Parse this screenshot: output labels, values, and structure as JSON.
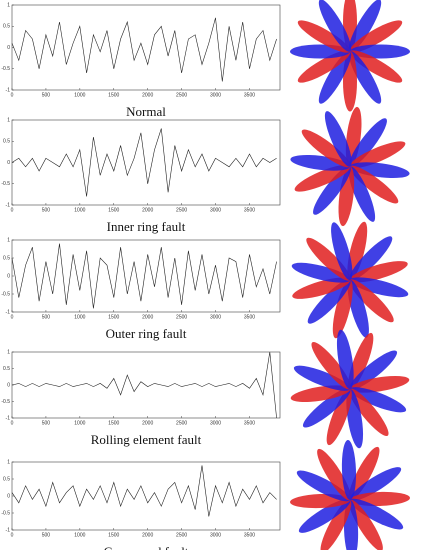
{
  "chart_data": [
    {
      "type": "line",
      "title": "Normal",
      "xlim": [
        0,
        3950
      ],
      "ylim": [
        -1,
        1
      ],
      "xticks": [
        0,
        500,
        1000,
        1500,
        2000,
        2500,
        3000,
        3500
      ],
      "yticks": [
        1,
        0.5,
        0,
        -0.5,
        -1
      ],
      "color": "#222222",
      "x": [
        0,
        100,
        200,
        300,
        400,
        500,
        600,
        700,
        800,
        900,
        1000,
        1100,
        1200,
        1300,
        1400,
        1500,
        1600,
        1700,
        1800,
        1900,
        2000,
        2100,
        2200,
        2300,
        2400,
        2500,
        2600,
        2700,
        2800,
        2900,
        3000,
        3100,
        3200,
        3300,
        3400,
        3500,
        3600,
        3700,
        3800,
        3900
      ],
      "values": [
        0.1,
        -0.3,
        0.4,
        0.2,
        -0.5,
        0.3,
        -0.2,
        0.6,
        -0.4,
        0.1,
        0.5,
        -0.6,
        0.3,
        -0.1,
        0.4,
        -0.5,
        0.2,
        0.6,
        -0.3,
        0.1,
        -0.4,
        0.3,
        0.5,
        -0.2,
        0.4,
        -0.6,
        0.2,
        0.3,
        -0.4,
        0.1,
        0.7,
        -0.8,
        0.5,
        -0.3,
        0.6,
        -0.5,
        0.2,
        0.4,
        -0.3,
        0.2
      ]
    },
    {
      "type": "line",
      "title": "Inner ring fault",
      "xlim": [
        0,
        3950
      ],
      "ylim": [
        -1,
        1
      ],
      "xticks": [
        0,
        500,
        1000,
        1500,
        2000,
        2500,
        3000,
        3500
      ],
      "yticks": [
        1,
        0.5,
        0,
        -0.5,
        -1
      ],
      "color": "#222222",
      "x": [
        0,
        100,
        200,
        300,
        400,
        500,
        600,
        700,
        800,
        900,
        1000,
        1100,
        1200,
        1300,
        1400,
        1500,
        1600,
        1700,
        1800,
        1900,
        2000,
        2100,
        2200,
        2300,
        2400,
        2500,
        2600,
        2700,
        2800,
        2900,
        3000,
        3100,
        3200,
        3300,
        3400,
        3500,
        3600,
        3700,
        3800,
        3900
      ],
      "values": [
        0.0,
        0.1,
        -0.1,
        0.1,
        -0.2,
        0.1,
        0.0,
        -0.1,
        0.2,
        -0.1,
        0.3,
        -0.8,
        0.6,
        -0.3,
        0.2,
        -0.2,
        0.4,
        -0.3,
        0.1,
        0.7,
        -0.5,
        0.3,
        0.8,
        -0.7,
        0.4,
        -0.2,
        0.3,
        -0.1,
        0.2,
        -0.2,
        0.1,
        0.0,
        -0.1,
        0.1,
        -0.1,
        0.2,
        -0.1,
        0.1,
        0.0,
        0.1
      ]
    },
    {
      "type": "line",
      "title": "Outer ring fault",
      "xlim": [
        0,
        3950
      ],
      "ylim": [
        -1,
        1
      ],
      "xticks": [
        0,
        500,
        1000,
        1500,
        2000,
        2500,
        3000,
        3500
      ],
      "yticks": [
        1,
        0.5,
        0,
        -0.5,
        -1
      ],
      "color": "#222222",
      "x": [
        0,
        100,
        200,
        300,
        400,
        500,
        600,
        700,
        800,
        900,
        1000,
        1100,
        1200,
        1300,
        1400,
        1500,
        1600,
        1700,
        1800,
        1900,
        2000,
        2100,
        2200,
        2300,
        2400,
        2500,
        2600,
        2700,
        2800,
        2900,
        3000,
        3100,
        3200,
        3300,
        3400,
        3500,
        3600,
        3700,
        3800,
        3900
      ],
      "values": [
        0.5,
        -0.6,
        0.3,
        0.8,
        -0.7,
        0.4,
        -0.5,
        0.9,
        -0.8,
        0.6,
        -0.4,
        0.7,
        -0.9,
        0.5,
        0.3,
        -0.6,
        0.8,
        -0.5,
        0.4,
        -0.7,
        0.6,
        -0.3,
        0.8,
        -0.6,
        0.5,
        -0.8,
        0.7,
        -0.4,
        0.6,
        -0.5,
        0.3,
        -0.7,
        0.5,
        0.4,
        -0.6,
        0.6,
        -0.3,
        0.2,
        -0.5,
        0.4
      ]
    },
    {
      "type": "line",
      "title": "Rolling element fault",
      "xlim": [
        0,
        3950
      ],
      "ylim": [
        -1,
        1
      ],
      "xticks": [
        0,
        500,
        1000,
        1500,
        2000,
        2500,
        3000,
        3500
      ],
      "yticks": [
        1,
        0.5,
        0,
        -0.5,
        -1
      ],
      "color": "#222222",
      "x": [
        0,
        100,
        200,
        300,
        400,
        500,
        600,
        700,
        800,
        900,
        1000,
        1100,
        1200,
        1300,
        1400,
        1500,
        1600,
        1700,
        1800,
        1900,
        2000,
        2100,
        2200,
        2300,
        2400,
        2500,
        2600,
        2700,
        2800,
        2900,
        3000,
        3100,
        3200,
        3300,
        3400,
        3500,
        3600,
        3700,
        3800,
        3900
      ],
      "values": [
        0.0,
        0.05,
        -0.05,
        0.05,
        -0.05,
        0.05,
        0.0,
        -0.05,
        0.05,
        -0.05,
        0.0,
        0.05,
        -0.05,
        0.05,
        -0.1,
        0.2,
        -0.3,
        0.3,
        -0.2,
        0.1,
        -0.05,
        0.05,
        0.0,
        -0.05,
        0.05,
        -0.05,
        0.0,
        0.05,
        -0.05,
        0.05,
        -0.05,
        0.0,
        0.05,
        -0.05,
        0.05,
        -0.1,
        0.2,
        -0.3,
        1.0,
        -1.0
      ]
    },
    {
      "type": "line",
      "title": "Compound fault",
      "xlim": [
        0,
        3950
      ],
      "ylim": [
        -1,
        1
      ],
      "xticks": [
        0,
        500,
        1000,
        1500,
        2000,
        2500,
        3000,
        3500
      ],
      "yticks": [
        1,
        0.5,
        0,
        -0.5,
        -1
      ],
      "color": "#222222",
      "x": [
        0,
        100,
        200,
        300,
        400,
        500,
        600,
        700,
        800,
        900,
        1000,
        1100,
        1200,
        1300,
        1400,
        1500,
        1600,
        1700,
        1800,
        1900,
        2000,
        2100,
        2200,
        2300,
        2400,
        2500,
        2600,
        2700,
        2800,
        2900,
        3000,
        3100,
        3200,
        3300,
        3400,
        3500,
        3600,
        3700,
        3800,
        3900
      ],
      "values": [
        0.1,
        -0.2,
        0.3,
        -0.1,
        0.2,
        -0.3,
        0.4,
        -0.2,
        0.1,
        0.3,
        -0.3,
        0.2,
        -0.1,
        0.3,
        -0.2,
        0.4,
        -0.3,
        0.2,
        -0.1,
        0.3,
        -0.2,
        0.1,
        -0.3,
        0.2,
        0.4,
        -0.2,
        0.3,
        -0.4,
        0.9,
        -0.6,
        0.3,
        -0.2,
        0.4,
        -0.3,
        0.2,
        -0.1,
        0.3,
        -0.2,
        0.1,
        -0.1
      ]
    }
  ]
}
